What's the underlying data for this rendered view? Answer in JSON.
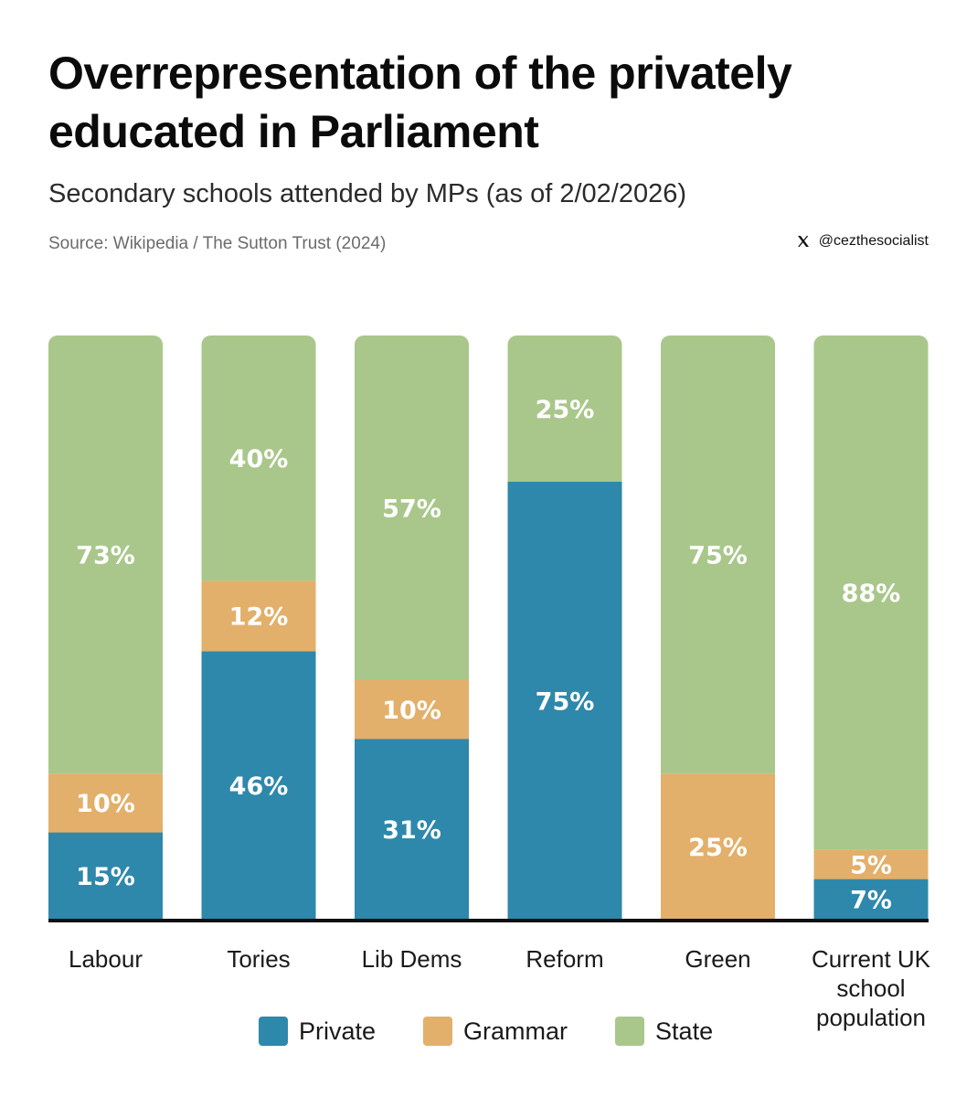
{
  "header": {
    "title": "Overrepresentation of the privately educated in Parliament",
    "subtitle": "Secondary schools attended by MPs (as of 2/02/2026)",
    "source": "Source: Wikipedia / The Sutton Trust (2024)",
    "handle": "@cezthesocialist",
    "handle_icon": "x-logo-icon"
  },
  "colors": {
    "Private": "#2e88ab",
    "Grammar": "#e2b06b",
    "State": "#a9c78a",
    "baseline": "#111111"
  },
  "chart_data": {
    "type": "bar",
    "stacked": true,
    "title": "Overrepresentation of the privately educated in Parliament",
    "subtitle": "Secondary schools attended by MPs (as of 2/02/2026)",
    "categories": [
      "Labour",
      "Tories",
      "Lib Dems",
      "Reform",
      "Green",
      "Current UK school population"
    ],
    "category_labels": [
      [
        "Labour"
      ],
      [
        "Tories"
      ],
      [
        "Lib Dems"
      ],
      [
        "Reform"
      ],
      [
        "Green"
      ],
      [
        "Current UK",
        "school",
        "population"
      ]
    ],
    "series": [
      {
        "name": "Private",
        "values": [
          15,
          46,
          31,
          75,
          0,
          7
        ],
        "labels": [
          "15%",
          "46%",
          "31%",
          "75%",
          "",
          "7%"
        ]
      },
      {
        "name": "Grammar",
        "values": [
          10,
          12,
          10,
          0,
          25,
          5
        ],
        "labels": [
          "10%",
          "12%",
          "10%",
          "",
          "25%",
          "5%"
        ]
      },
      {
        "name": "State",
        "values": [
          73,
          40,
          57,
          25,
          75,
          88
        ],
        "labels": [
          "73%",
          "40%",
          "57%",
          "25%",
          "75%",
          "88%"
        ]
      }
    ],
    "ylim": [
      0,
      100
    ],
    "xlabel": "",
    "ylabel": "",
    "grid": false,
    "legend": "bottom",
    "legend_entries": [
      "Private",
      "Grammar",
      "State"
    ]
  }
}
